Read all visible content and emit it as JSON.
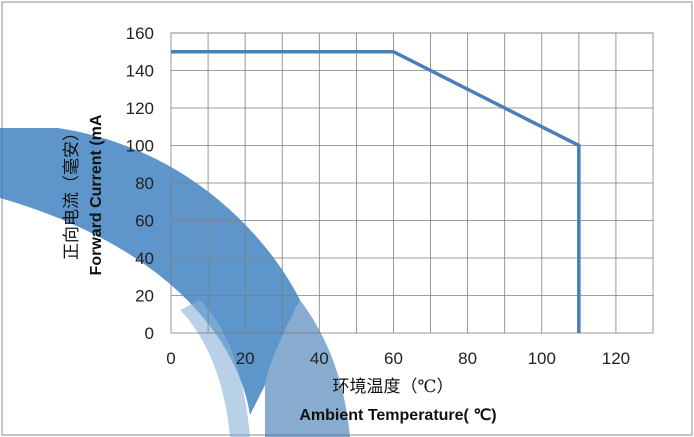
{
  "chart_data": {
    "type": "line",
    "title": "",
    "xlabel_cn": "环境温度（℃）",
    "xlabel_en": "Ambient Temperature( ℃)",
    "ylabel_cn": "正向电流（毫安）",
    "ylabel_en": "Forward Current (mA",
    "xlim": [
      0,
      130
    ],
    "ylim": [
      0,
      160
    ],
    "x_ticks": [
      "0",
      "20",
      "40",
      "60",
      "80",
      "100",
      "120"
    ],
    "y_ticks": [
      "0",
      "20",
      "40",
      "60",
      "80",
      "100",
      "120",
      "140",
      "160"
    ],
    "grid": true,
    "legend": false,
    "series": [
      {
        "x": [
          0,
          60,
          110,
          110
        ],
        "y": [
          150,
          150,
          100,
          0
        ],
        "color": "#4a7ebb"
      }
    ]
  },
  "colors": {
    "frame": "#8c8c8c",
    "grid": "#7f7f7f",
    "watermark": "#3a7fbf"
  }
}
